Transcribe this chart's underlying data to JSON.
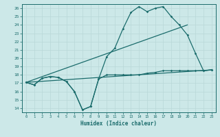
{
  "background_color": "#cce8e8",
  "grid_color": "#aacccc",
  "line_color": "#1a6b6b",
  "xlabel": "Humidex (Indice chaleur)",
  "xlim": [
    -0.5,
    23.5
  ],
  "ylim": [
    13.5,
    26.5
  ],
  "yticks": [
    14,
    15,
    16,
    17,
    18,
    19,
    20,
    21,
    22,
    23,
    24,
    25,
    26
  ],
  "xticks": [
    0,
    1,
    2,
    3,
    4,
    5,
    6,
    7,
    8,
    9,
    10,
    11,
    12,
    13,
    14,
    15,
    16,
    17,
    18,
    19,
    20,
    21,
    22,
    23
  ],
  "curve_main_x": [
    0,
    1,
    2,
    3,
    4,
    5,
    6,
    7,
    8,
    9,
    10,
    11,
    12,
    13,
    14,
    15,
    16,
    17,
    18,
    19,
    20,
    21,
    22,
    23
  ],
  "curve_main_y": [
    17.1,
    16.8,
    17.6,
    17.8,
    17.7,
    17.2,
    16.0,
    13.8,
    14.2,
    17.5,
    20.2,
    21.2,
    23.5,
    25.5,
    26.2,
    25.6,
    26.0,
    26.2,
    25.0,
    24.0,
    22.8,
    20.6,
    18.5,
    18.6
  ],
  "curve_flat_x": [
    0,
    1,
    2,
    3,
    4,
    5,
    6,
    7,
    8,
    9,
    10,
    11,
    12,
    13,
    14,
    15,
    16,
    17,
    18,
    19,
    20,
    21,
    22,
    23
  ],
  "curve_flat_y": [
    17.1,
    16.8,
    17.6,
    17.8,
    17.7,
    17.2,
    16.0,
    13.8,
    14.2,
    17.5,
    18.0,
    18.0,
    18.0,
    18.0,
    18.0,
    18.2,
    18.3,
    18.5,
    18.5,
    18.5,
    18.5,
    18.5,
    18.5,
    18.6
  ],
  "trend1_x": [
    0,
    23
  ],
  "trend1_y": [
    17.1,
    18.6
  ],
  "trend2_x": [
    0,
    20
  ],
  "trend2_y": [
    17.1,
    24.0
  ]
}
